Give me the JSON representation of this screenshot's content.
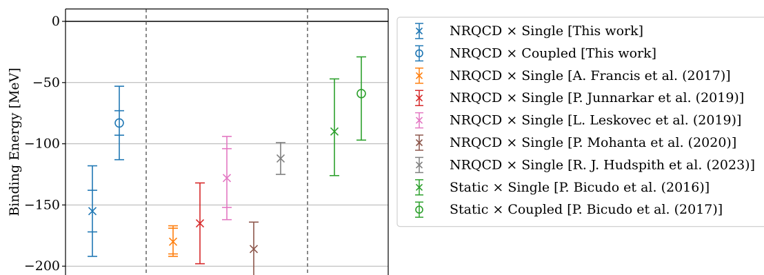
{
  "chart_data": {
    "type": "scatter",
    "title": "",
    "xlabel": "",
    "ylabel": "Binding Energy [MeV]",
    "ylim": [
      -208,
      10
    ],
    "yticks": [
      0,
      -50,
      -100,
      -150,
      -200
    ],
    "ytick_labels": [
      "0",
      "−50",
      "−100",
      "−150",
      "−200"
    ],
    "grid": "y",
    "legend_position": "right (outside)",
    "series": [
      {
        "name": "NRQCD × Single [This work]",
        "marker": "x",
        "color": "#1f77b4",
        "group": 1,
        "x": 1,
        "y": -155,
        "err_outer": [
          -192,
          -118
        ],
        "err_inner": [
          -172,
          -138
        ]
      },
      {
        "name": "NRQCD × Coupled [This work]",
        "marker": "o",
        "color": "#1f77b4",
        "group": 1,
        "x": 2,
        "y": -83,
        "err_outer": [
          -113,
          -53
        ],
        "err_inner": [
          -93,
          -73
        ]
      },
      {
        "name": "NRQCD × Single [A. Francis et al. (2017)]",
        "marker": "x",
        "color": "#ff7f0e",
        "group": 2,
        "x": 1,
        "y": -180,
        "err_outer": [
          -192,
          -167
        ],
        "err_inner": [
          -190,
          -169
        ]
      },
      {
        "name": "NRQCD × Single [P. Junnarkar et al. (2019)]",
        "marker": "x",
        "color": "#d62728",
        "group": 2,
        "x": 2,
        "y": -165,
        "err_outer": [
          -198,
          -132
        ],
        "err_inner": null
      },
      {
        "name": "NRQCD × Single [L. Leskovec et al. (2019)]",
        "marker": "x",
        "color": "#e377c2",
        "group": 2,
        "x": 3,
        "y": -128,
        "err_outer": [
          -162,
          -94
        ],
        "err_inner": [
          -152,
          -104
        ]
      },
      {
        "name": "NRQCD × Single [P. Mohanta et al. (2020)]",
        "marker": "x",
        "color": "#8c564b",
        "group": 2,
        "x": 4,
        "y": -186,
        "err_outer": [
          -210,
          -164
        ],
        "err_inner": null
      },
      {
        "name": "NRQCD × Single [R. J. Hudspith et al. (2023)]",
        "marker": "x",
        "color": "#7f7f7f",
        "group": 2,
        "x": 5,
        "y": -112,
        "err_outer": [
          -125,
          -99
        ],
        "err_inner": null
      },
      {
        "name": "Static × Single [P. Bicudo et al. (2016)]",
        "marker": "x",
        "color": "#2ca02c",
        "group": 3,
        "x": 1,
        "y": -90,
        "err_outer": [
          -126,
          -47
        ],
        "err_inner": null
      },
      {
        "name": "Static × Coupled [P. Bicudo et al. (2017)]",
        "marker": "o",
        "color": "#2ca02c",
        "group": 3,
        "x": 2,
        "y": -59,
        "err_outer": [
          -97,
          -29
        ],
        "err_inner": null
      }
    ]
  }
}
